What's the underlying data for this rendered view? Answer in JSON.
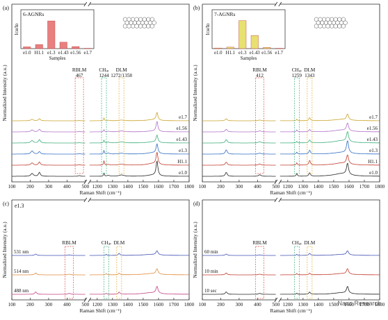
{
  "watermark": "Nano Research",
  "chart_data": [
    {
      "panel": "(a)",
      "type": "line",
      "xlabel": "Raman Shift (cm⁻¹)",
      "ylabel": "Normalized Intensity (a.u.)",
      "xticks": [
        "100",
        "200",
        "300",
        "400",
        "500",
        "1200",
        "1300",
        "1400",
        "1500",
        "1600",
        "1700",
        "1800"
      ],
      "xbreak": [
        500,
        1150
      ],
      "series_labels": [
        "e1.7",
        "e1.56",
        "e1.43",
        "e1.3",
        "H1.1",
        "e1.0"
      ],
      "series_colors": [
        "#c9a227",
        "#b06fc9",
        "#3cae7a",
        "#2f6dc2",
        "#c0392b",
        "#222222"
      ],
      "annotations": [
        {
          "text": "RBLM",
          "sub": "467",
          "x": 467
        },
        {
          "text": "CHᵢₚ",
          "sub": "1244",
          "x": 1244
        },
        {
          "text": "DLM",
          "sub": "1272/1358",
          "x": 1358
        }
      ],
      "peaks": {
        "RBLM": 467,
        "CH": 1244,
        "DLM": [
          1272,
          1358
        ],
        "G": 1590
      },
      "inset": {
        "title": "6-AGNRs",
        "type": "bar",
        "xlabel": "Samples",
        "ylabel": "Iᴄʜ/Iᴅ",
        "categories": [
          "e1.0",
          "H1.1",
          "e1.3",
          "e1.43",
          "e1.56",
          "e1.7"
        ],
        "values": [
          0.06,
          0.14,
          0.95,
          0.22,
          0.07,
          0.01
        ],
        "color": "#e88080"
      }
    },
    {
      "panel": "(b)",
      "type": "line",
      "xlabel": "Raman Shift (cm⁻¹)",
      "ylabel": "Normalized Intensity (a.u.)",
      "xticks": [
        "100",
        "200",
        "300",
        "400",
        "500",
        "1200",
        "1300",
        "1400",
        "1500",
        "1600",
        "1700",
        "1800"
      ],
      "xbreak": [
        500,
        1150
      ],
      "series_labels": [
        "e1.7",
        "e1.56",
        "e1.43",
        "e1.3",
        "H1.1",
        "e1.0"
      ],
      "series_colors": [
        "#c9a227",
        "#b06fc9",
        "#3cae7a",
        "#2f6dc2",
        "#c0392b",
        "#222222"
      ],
      "annotations": [
        {
          "text": "RBLM",
          "sub": "412",
          "x": 412
        },
        {
          "text": "CHᵢₚ",
          "sub": "1259",
          "x": 1259
        },
        {
          "text": "DLM",
          "sub": "1343",
          "x": 1343
        }
      ],
      "peaks": {
        "RBLM": 412,
        "CH": 1259,
        "DLM": 1343,
        "G": 1590
      },
      "inset": {
        "title": "7-AGNRs",
        "type": "bar",
        "xlabel": "Samples",
        "ylabel": "Iᴄʜ/Iᴅ",
        "categories": [
          "e1.0",
          "H1.1",
          "e1.3",
          "e1.43",
          "e1.56",
          "e1.7"
        ],
        "values": [
          0.02,
          0.05,
          0.96,
          0.45,
          0.04,
          0.01
        ],
        "color": "#e8e070"
      }
    },
    {
      "panel": "(c)",
      "type": "line",
      "title": "e1.3",
      "xlabel": "Raman Shift (cm⁻¹)",
      "ylabel": "Normalized Intensity (a.u.)",
      "xticks": [
        "100",
        "200",
        "300",
        "400",
        "500",
        "1200",
        "1300",
        "1400",
        "1500",
        "1600",
        "1700",
        "1800"
      ],
      "xbreak": [
        500,
        1150
      ],
      "series_labels": [
        "531 nm",
        "514 nm",
        "488 nm"
      ],
      "series_colors": [
        "#4050b5",
        "#e0893a",
        "#c04080"
      ],
      "annotations": [
        {
          "text": "RBLM",
          "x": 412
        },
        {
          "text": "CHᵢₚ",
          "x": 1259
        },
        {
          "text": "DLM",
          "x": 1343
        }
      ]
    },
    {
      "panel": "(d)",
      "type": "line",
      "xlabel": "Raman Shift (cm⁻¹)",
      "ylabel": "Normalized Intensity (a.u.)",
      "xticks": [
        "100",
        "200",
        "300",
        "400",
        "500",
        "1200",
        "1300",
        "1400",
        "1500",
        "1600",
        "1700",
        "1800"
      ],
      "xbreak": [
        500,
        1150
      ],
      "series_labels": [
        "60 min",
        "10 min",
        "10 sec"
      ],
      "series_colors": [
        "#4050b5",
        "#c0392b",
        "#222222"
      ],
      "annotations": [
        {
          "text": "RBLM",
          "x": 412
        },
        {
          "text": "CHᵢₚ",
          "x": 1259
        },
        {
          "text": "DLM",
          "x": 1343
        }
      ]
    }
  ]
}
